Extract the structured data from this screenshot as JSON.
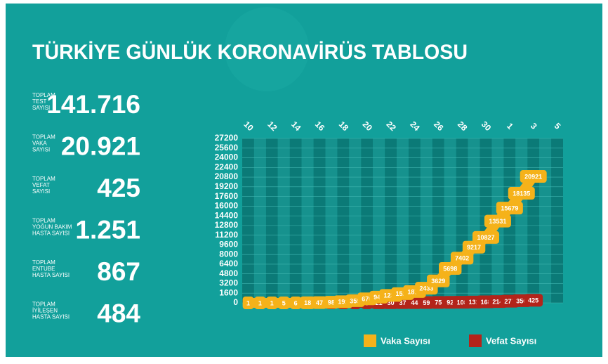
{
  "chart_data": {
    "type": "line",
    "title": "TÜRKİYE GÜNLÜK KORONAVİRÜS TABLOSU",
    "categories": [
      "10",
      null,
      "12",
      null,
      "14",
      null,
      "16",
      null,
      "18",
      null,
      "20",
      null,
      "22",
      null,
      "24",
      null,
      "26",
      null,
      "28",
      null,
      "30",
      null,
      "1",
      null,
      "3",
      null,
      "5"
    ],
    "series": [
      {
        "name": "Vaka Sayısı",
        "color": "#f5b21a",
        "values": [
          1,
          1,
          1,
          5,
          6,
          18,
          47,
          98,
          191,
          359,
          670,
          947,
          1236,
          1529,
          1872,
          2433,
          3629,
          5698,
          7402,
          9217,
          10827,
          13531,
          15679,
          18135,
          20921,
          null,
          null
        ]
      },
      {
        "name": "Vefat Sayısı",
        "color": "#b3241a",
        "values": [
          null,
          null,
          null,
          null,
          null,
          null,
          null,
          1,
          2,
          3,
          9,
          21,
          30,
          37,
          44,
          59,
          75,
          92,
          108,
          131,
          168,
          214,
          277,
          356,
          425,
          null,
          null
        ]
      }
    ],
    "ylim": [
      0,
      27200
    ],
    "yticks": [
      0,
      1600,
      3200,
      4800,
      6400,
      8000,
      9600,
      11200,
      12800,
      14400,
      16000,
      17600,
      19200,
      20800,
      22400,
      24000,
      25600,
      27200
    ],
    "grid": true,
    "legend": "bottom"
  },
  "stats": [
    {
      "label": [
        "TOPLAM",
        "TEST",
        "SAYISI"
      ],
      "value": "141.716"
    },
    {
      "label": [
        "TOPLAM",
        "VAKA",
        "SAYISI"
      ],
      "value": "20.921"
    },
    {
      "label": [
        "TOPLAM",
        "VEFAT",
        "SAYISI"
      ],
      "value": "425"
    },
    {
      "label": [
        "TOPLAM",
        "YOĞUN BAKIM",
        "HASTA SAYISI"
      ],
      "value": "1.251"
    },
    {
      "label": [
        "TOPLAM",
        "ENTUBE",
        "HASTA SAYISI"
      ],
      "value": "867"
    },
    {
      "label": [
        "TOPLAM",
        "İYİLEŞEN",
        "HASTA SAYISI"
      ],
      "value": "484"
    }
  ]
}
